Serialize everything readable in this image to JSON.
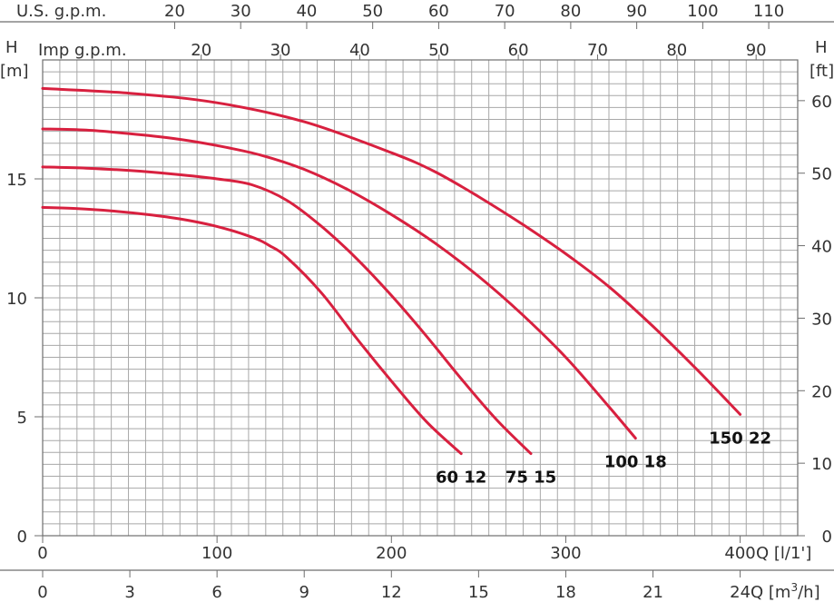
{
  "chart_data": {
    "type": "line",
    "left_axis_title": "H",
    "left_axis_unit": "[m]",
    "right_axis_title": "H",
    "right_axis_unit": "[ft]",
    "top_axis_1_label": "U.S. g.p.m.",
    "top_axis_2_label": "Imp g.p.m.",
    "bottom_axis_1_label": "Q [l/1']",
    "bottom_axis_2_label_main": "Q [m",
    "bottom_axis_2_label_sup": "3",
    "bottom_axis_2_label_end": "/h]",
    "ylim_m": [
      0,
      20
    ],
    "xlim_lpm": [
      0,
      433
    ],
    "grid": true,
    "left_ticks": [
      "0",
      "5",
      "10",
      "15"
    ],
    "right_ticks": [
      "0",
      "10",
      "20",
      "30",
      "40",
      "50",
      "60"
    ],
    "top_us_ticks": [
      "20",
      "30",
      "40",
      "50",
      "60",
      "70",
      "80",
      "90",
      "100",
      "110"
    ],
    "top_imp_ticks": [
      "20",
      "30",
      "40",
      "50",
      "60",
      "70",
      "80",
      "90"
    ],
    "bottom_lpm_ticks": [
      "0",
      "100",
      "200",
      "300",
      "400"
    ],
    "bottom_m3h_ticks": [
      "0",
      "3",
      "6",
      "9",
      "12",
      "15",
      "18",
      "21",
      "24"
    ],
    "series": [
      {
        "name": "60 12",
        "color": "#d8203f",
        "x": [
          0,
          20,
          40,
          60,
          80,
          100,
          120,
          130,
          140,
          160,
          180,
          200,
          220,
          240
        ],
        "y": [
          13.8,
          13.75,
          13.65,
          13.5,
          13.3,
          13.0,
          12.55,
          12.2,
          11.7,
          10.2,
          8.3,
          6.5,
          4.8,
          3.45
        ]
      },
      {
        "name": "75 15",
        "color": "#d8203f",
        "x": [
          0,
          25,
          50,
          75,
          100,
          120,
          140,
          160,
          180,
          200,
          220,
          240,
          260,
          280
        ],
        "y": [
          15.5,
          15.45,
          15.35,
          15.2,
          15.0,
          14.75,
          14.1,
          13.0,
          11.65,
          10.1,
          8.4,
          6.6,
          4.9,
          3.45
        ]
      },
      {
        "name": "100 18",
        "color": "#d8203f",
        "x": [
          0,
          25,
          50,
          75,
          100,
          125,
          150,
          175,
          200,
          225,
          250,
          275,
          300,
          325,
          340
        ],
        "y": [
          17.1,
          17.05,
          16.9,
          16.7,
          16.4,
          16.0,
          15.4,
          14.55,
          13.5,
          12.3,
          10.9,
          9.3,
          7.5,
          5.4,
          4.1
        ]
      },
      {
        "name": "150 22",
        "color": "#d8203f",
        "x": [
          0,
          50,
          100,
          150,
          200,
          225,
          250,
          275,
          300,
          325,
          350,
          375,
          400
        ],
        "y": [
          18.8,
          18.6,
          18.2,
          17.4,
          16.1,
          15.3,
          14.25,
          13.1,
          11.85,
          10.45,
          8.8,
          7.0,
          5.1
        ]
      }
    ]
  }
}
